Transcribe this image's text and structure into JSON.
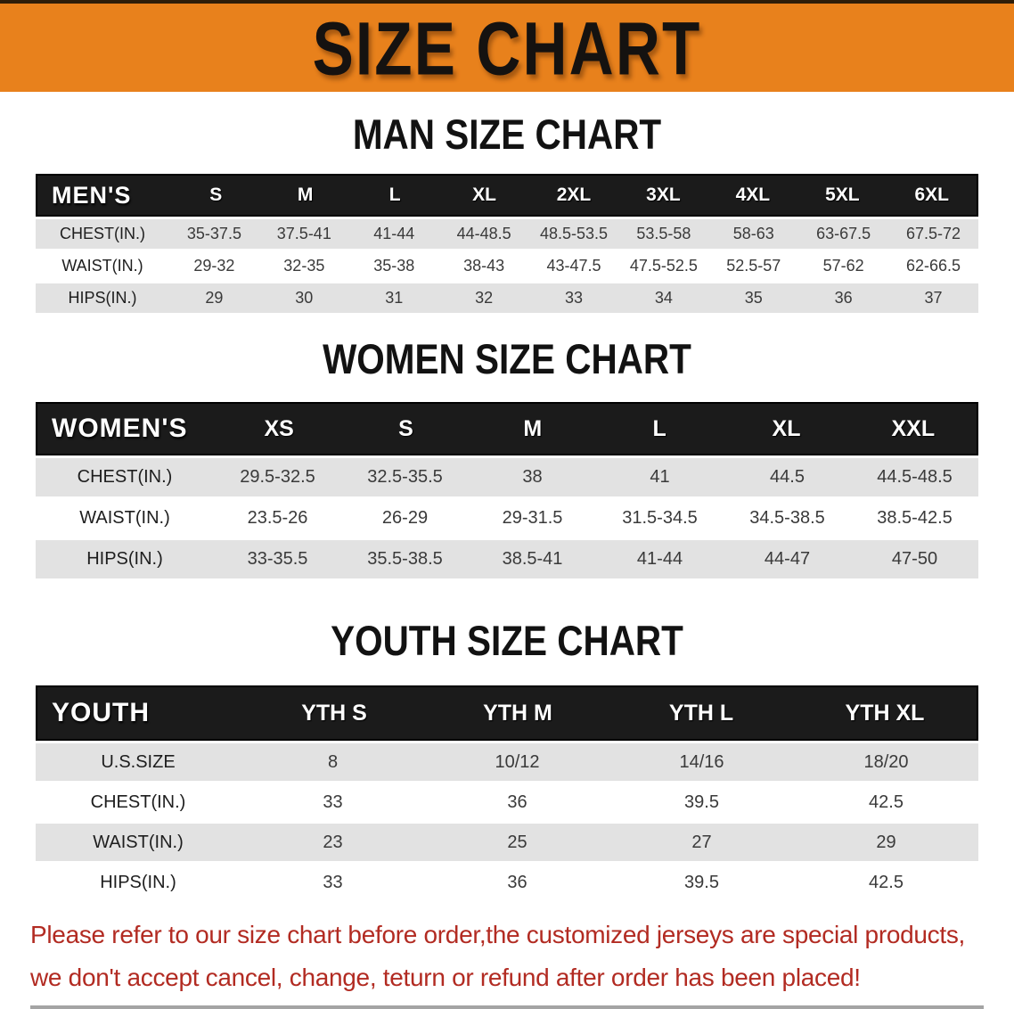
{
  "colors": {
    "banner_bg": "#E8811C",
    "banner_top_edge": "#2E1D09",
    "band_bg": "#1B1B1B",
    "row_stripe": "#E2E2E2",
    "warning_red": "#B22B22"
  },
  "banner": {
    "title": "SIZE CHART"
  },
  "men": {
    "heading": "MAN SIZE CHART",
    "label": "MEN'S",
    "columns": [
      "S",
      "M",
      "L",
      "XL",
      "2XL",
      "3XL",
      "4XL",
      "5XL",
      "6XL"
    ],
    "rows": [
      {
        "label": "CHEST(IN.)",
        "values": [
          "35-37.5",
          "37.5-41",
          "41-44",
          "44-48.5",
          "48.5-53.5",
          "53.5-58",
          "58-63",
          "63-67.5",
          "67.5-72"
        ]
      },
      {
        "label": "WAIST(IN.)",
        "values": [
          "29-32",
          "32-35",
          "35-38",
          "38-43",
          "43-47.5",
          "47.5-52.5",
          "52.5-57",
          "57-62",
          "62-66.5"
        ]
      },
      {
        "label": "HIPS(IN.)",
        "values": [
          "29",
          "30",
          "31",
          "32",
          "33",
          "34",
          "35",
          "36",
          "37"
        ]
      }
    ]
  },
  "women": {
    "heading": "WOMEN SIZE CHART",
    "label": "WOMEN'S",
    "columns": [
      "XS",
      "S",
      "M",
      "L",
      "XL",
      "XXL"
    ],
    "rows": [
      {
        "label": "CHEST(IN.)",
        "values": [
          "29.5-32.5",
          "32.5-35.5",
          "38",
          "41",
          "44.5",
          "44.5-48.5"
        ]
      },
      {
        "label": "WAIST(IN.)",
        "values": [
          "23.5-26",
          "26-29",
          "29-31.5",
          "31.5-34.5",
          "34.5-38.5",
          "38.5-42.5"
        ]
      },
      {
        "label": "HIPS(IN.)",
        "values": [
          "33-35.5",
          "35.5-38.5",
          "38.5-41",
          "41-44",
          "44-47",
          "47-50"
        ]
      }
    ]
  },
  "youth": {
    "heading": "YOUTH SIZE CHART",
    "label": "YOUTH",
    "columns": [
      "YTH S",
      "YTH M",
      "YTH L",
      "YTH XL"
    ],
    "rows": [
      {
        "label": "U.S.SIZE",
        "values": [
          "8",
          "10/12",
          "14/16",
          "18/20"
        ]
      },
      {
        "label": "CHEST(IN.)",
        "values": [
          "33",
          "36",
          "39.5",
          "42.5"
        ]
      },
      {
        "label": "WAIST(IN.)",
        "values": [
          "23",
          "25",
          "27",
          "29"
        ]
      },
      {
        "label": "HIPS(IN.)",
        "values": [
          "33",
          "36",
          "39.5",
          "42.5"
        ]
      }
    ]
  },
  "footer": {
    "line1": "Please refer to our size chart before order,the customized jerseys are special products,",
    "line2": "we don't accept cancel, change, teturn or refund after order has been placed!"
  }
}
